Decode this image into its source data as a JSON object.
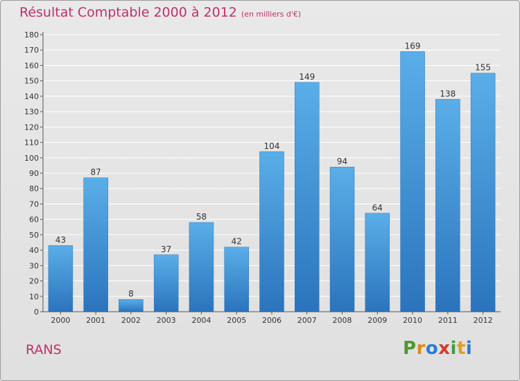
{
  "header": {
    "title": "Résultat Comptable 2000 à 2012",
    "subtitle": "(en milliers d'€)"
  },
  "footer": {
    "commune": "RANS",
    "brand": [
      "P",
      "r",
      "o",
      "x",
      "i",
      "t",
      "i"
    ],
    "brand_colors": [
      "#4a9a2e",
      "#e08a12",
      "#2c7bd6",
      "#d63a2a",
      "#3da03a",
      "#e0a020",
      "#2c7bd6"
    ]
  },
  "colors": {
    "bar": "#3f8fd6",
    "bar_light": "#5aaee8",
    "bar_dark": "#2b74bd",
    "grid": "#ffffff",
    "axis": "#555555",
    "title": "#c0306a"
  },
  "chart_data": {
    "type": "bar",
    "title": "Résultat Comptable 2000 à 2012",
    "subtitle": "(en milliers d'€)",
    "xlabel": "",
    "ylabel": "",
    "categories": [
      "2000",
      "2001",
      "2002",
      "2003",
      "2004",
      "2005",
      "2006",
      "2007",
      "2008",
      "2009",
      "2010",
      "2011",
      "2012"
    ],
    "values": [
      43,
      87,
      8,
      37,
      58,
      42,
      104,
      149,
      94,
      64,
      169,
      138,
      155
    ],
    "ylim": [
      0,
      180
    ],
    "yticks": [
      0,
      10,
      20,
      30,
      40,
      50,
      60,
      70,
      80,
      90,
      100,
      110,
      120,
      130,
      140,
      150,
      160,
      170,
      180
    ],
    "grid": true,
    "legend": "none"
  }
}
